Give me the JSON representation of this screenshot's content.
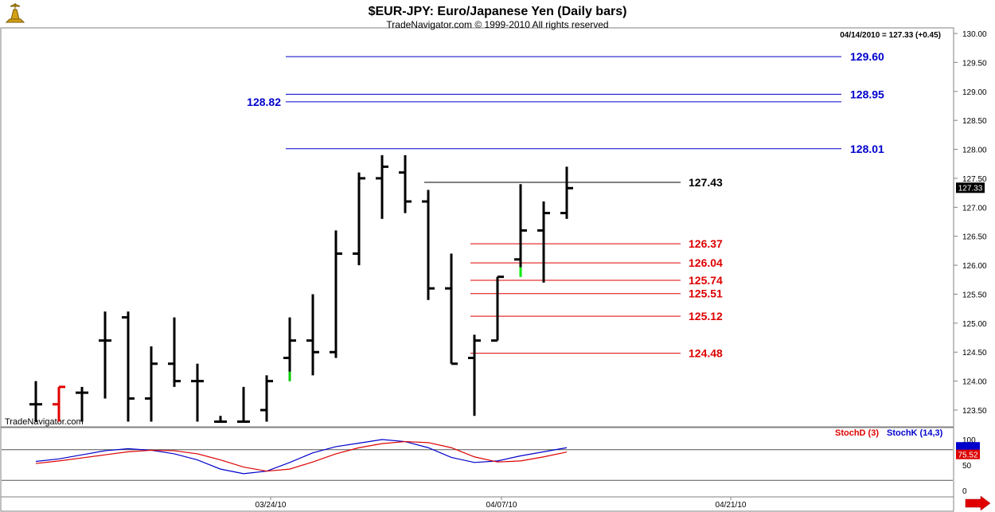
{
  "header": {
    "title": "$EUR-JPY:  Euro/Japanese Yen  (Daily bars)",
    "copyright": "TradeNavigator.com © 1999-2010 All rights reserved",
    "readout": "04/14/2010 = 127.33 (+0.45)",
    "watermark": "TradeNavigator.com",
    "last_price_tag": "127.33"
  },
  "chart_data": [
    {
      "type": "ohlc",
      "ylim": [
        123.3,
        130.1
      ],
      "y_ticks": [
        "130.00",
        "129.50",
        "129.00",
        "128.50",
        "128.00",
        "127.50",
        "127.00",
        "126.50",
        "126.00",
        "125.50",
        "125.00",
        "124.50",
        "124.00",
        "123.50"
      ],
      "x_ticks": [
        "03/24/10",
        "04/07/10",
        "04/21/10"
      ],
      "bars": [
        {
          "o": 123.6,
          "h": 124.0,
          "l": 123.3,
          "c": 123.6,
          "color": "#000000"
        },
        {
          "o": 123.6,
          "h": 123.9,
          "l": 123.3,
          "c": 123.9,
          "color": "#e00000"
        },
        {
          "o": 123.8,
          "h": 123.9,
          "l": 123.3,
          "c": 123.8,
          "color": "#000000"
        },
        {
          "o": 124.7,
          "h": 125.2,
          "l": 123.7,
          "c": 124.7,
          "color": "#000000"
        },
        {
          "o": 125.1,
          "h": 125.2,
          "l": 123.3,
          "c": 123.7,
          "color": "#000000"
        },
        {
          "o": 123.7,
          "h": 124.6,
          "l": 123.3,
          "c": 124.3,
          "color": "#000000"
        },
        {
          "o": 124.3,
          "h": 125.1,
          "l": 123.9,
          "c": 124.0,
          "color": "#000000"
        },
        {
          "o": 124.0,
          "h": 124.3,
          "l": 123.3,
          "c": 124.0,
          "color": "#000000"
        },
        {
          "o": 123.3,
          "h": 123.4,
          "l": 123.3,
          "c": 123.3,
          "color": "#000000"
        },
        {
          "o": 123.3,
          "h": 123.9,
          "l": 123.3,
          "c": 123.3,
          "color": "#000000"
        },
        {
          "o": 123.5,
          "h": 124.1,
          "l": 123.3,
          "c": 124.0,
          "color": "#000000"
        },
        {
          "o": 124.4,
          "h": 125.1,
          "l": 124.0,
          "c": 124.7,
          "color": "#000000",
          "low_color": "#00cc00"
        },
        {
          "o": 124.7,
          "h": 125.5,
          "l": 124.1,
          "c": 124.5,
          "color": "#000000"
        },
        {
          "o": 124.5,
          "h": 126.6,
          "l": 124.4,
          "c": 126.2,
          "color": "#000000"
        },
        {
          "o": 126.2,
          "h": 127.6,
          "l": 126.0,
          "c": 127.5,
          "color": "#000000"
        },
        {
          "o": 127.5,
          "h": 127.9,
          "l": 126.8,
          "c": 127.7,
          "color": "#000000"
        },
        {
          "o": 127.6,
          "h": 127.9,
          "l": 126.9,
          "c": 127.1,
          "color": "#000000"
        },
        {
          "o": 127.1,
          "h": 127.3,
          "l": 125.4,
          "c": 125.6,
          "color": "#000000"
        },
        {
          "o": 125.6,
          "h": 126.2,
          "l": 124.3,
          "c": 124.3,
          "color": "#000000"
        },
        {
          "o": 124.4,
          "h": 124.8,
          "l": 123.4,
          "c": 124.7,
          "color": "#000000"
        },
        {
          "o": 124.7,
          "h": 125.8,
          "l": 124.7,
          "c": 125.8,
          "color": "#000000"
        },
        {
          "o": 126.1,
          "h": 127.4,
          "l": 125.8,
          "c": 126.6,
          "color": "#000000",
          "low_color": "#00ee00"
        },
        {
          "o": 126.6,
          "h": 127.1,
          "l": 125.7,
          "c": 126.9,
          "color": "#000000"
        },
        {
          "o": 126.9,
          "h": 127.7,
          "l": 126.8,
          "c": 127.33,
          "color": "#000000"
        }
      ],
      "levels": [
        {
          "value": 129.6,
          "label": "129.60",
          "color": "#0000cc",
          "label_side": "right",
          "start_bar": 11,
          "end": "far"
        },
        {
          "value": 128.95,
          "label": "128.95",
          "color": "#0000cc",
          "label_side": "right",
          "start_bar": 11,
          "end": "far"
        },
        {
          "value": 128.82,
          "label": "128.82",
          "color": "#0000cc",
          "label_side": "left",
          "start_bar": 11,
          "end": "far"
        },
        {
          "value": 128.01,
          "label": "128.01",
          "color": "#0000cc",
          "label_side": "right",
          "start_bar": 11,
          "end": "far"
        },
        {
          "value": 127.43,
          "label": "127.43",
          "color": "#000000",
          "label_side": "right",
          "start_bar": 17,
          "end": "near"
        },
        {
          "value": 126.37,
          "label": "126.37",
          "color": "#dd0000",
          "label_side": "right",
          "start_bar": 19,
          "end": "near"
        },
        {
          "value": 126.04,
          "label": "126.04",
          "color": "#dd0000",
          "label_side": "right",
          "start_bar": 19,
          "end": "near"
        },
        {
          "value": 125.74,
          "label": "125.74",
          "color": "#dd0000",
          "label_side": "right",
          "start_bar": 19,
          "end": "near"
        },
        {
          "value": 125.51,
          "label": "125.51",
          "color": "#dd0000",
          "label_side": "right",
          "start_bar": 19,
          "end": "near"
        },
        {
          "value": 125.12,
          "label": "125.12",
          "color": "#dd0000",
          "label_side": "right",
          "start_bar": 19,
          "end": "near"
        },
        {
          "value": 124.48,
          "label": "124.48",
          "color": "#dd0000",
          "label_side": "right",
          "start_bar": 19,
          "end": "near"
        }
      ]
    },
    {
      "type": "line",
      "ylim": [
        0,
        100
      ],
      "y_ticks": [
        "100",
        "50",
        "0"
      ],
      "reference_lines": [
        80,
        20
      ],
      "legend": [
        {
          "name": "StochD (3)",
          "color": "#dd0000"
        },
        {
          "name": "StochK (14,3)",
          "color": "#0000cc"
        }
      ],
      "value_tags": [
        {
          "label": "75.52",
          "color": "#dd0000"
        }
      ],
      "series": [
        {
          "name": "StochK (14,3)",
          "color": "#0000cc",
          "values": [
            57,
            62,
            70,
            78,
            82,
            79,
            72,
            60,
            42,
            33,
            38,
            55,
            74,
            86,
            93,
            100,
            96,
            84,
            65,
            55,
            58,
            68,
            76,
            84
          ]
        },
        {
          "name": "StochD (3)",
          "color": "#dd0000",
          "values": [
            53,
            58,
            64,
            70,
            76,
            79,
            78,
            72,
            60,
            46,
            38,
            42,
            56,
            72,
            84,
            92,
            96,
            94,
            84,
            66,
            56,
            58,
            66,
            75.52
          ]
        }
      ]
    }
  ]
}
